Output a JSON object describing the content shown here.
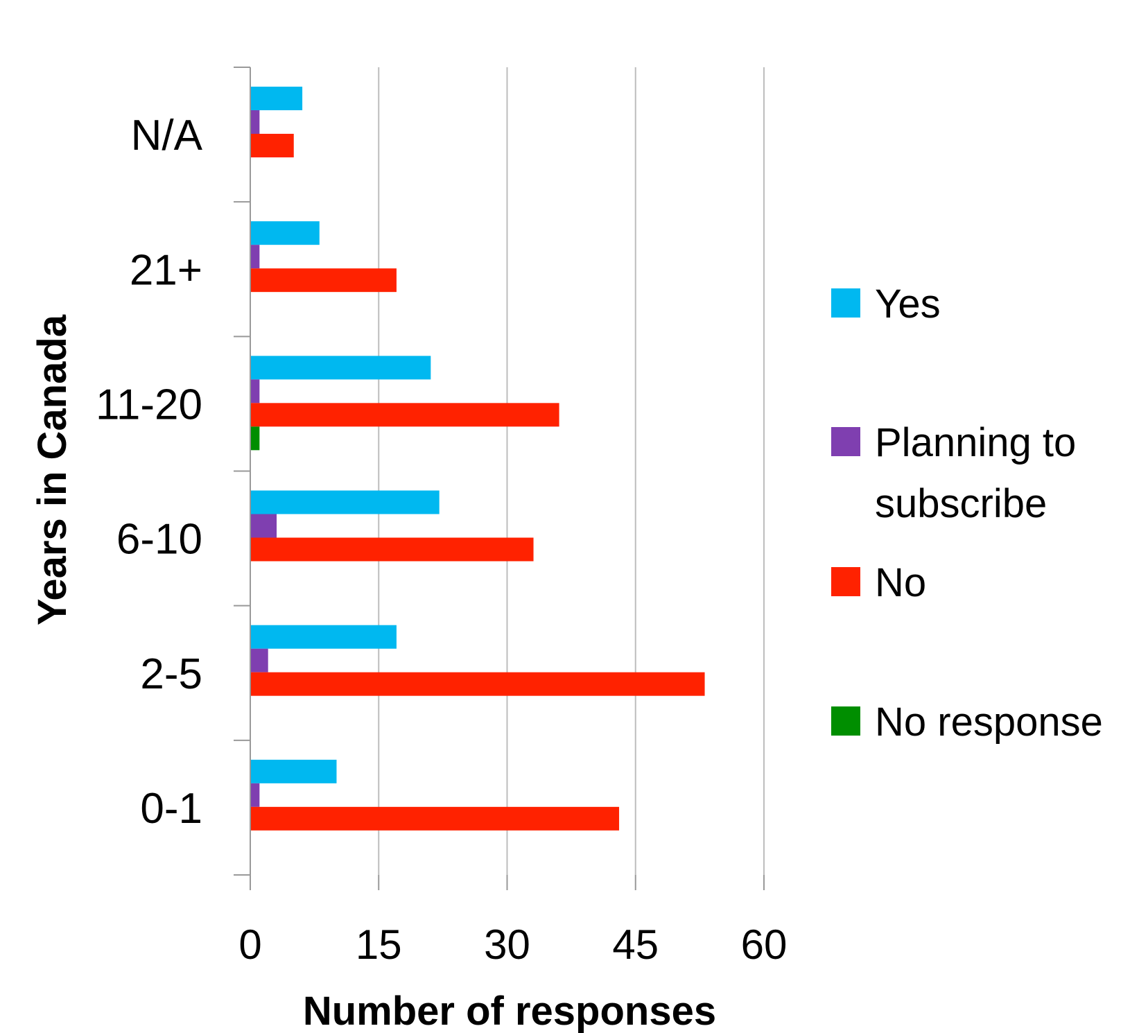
{
  "chart_data": {
    "type": "bar",
    "orientation": "horizontal",
    "title": "",
    "xlabel": "Number of responses",
    "ylabel": "Years in Canada",
    "xlim": [
      0,
      60
    ],
    "xticks": [
      0,
      15,
      30,
      45,
      60
    ],
    "grid": true,
    "legend_position": "right",
    "categories": [
      "N/A",
      "21+",
      "11-20",
      "6-10",
      "2-5",
      "0-1"
    ],
    "series": [
      {
        "name": "Yes",
        "color": "#00B8F0",
        "values": [
          6,
          8,
          21,
          22,
          17,
          10
        ]
      },
      {
        "name": "Planning to subscribe",
        "color": "#7F3FB0",
        "values": [
          1,
          1,
          1,
          3,
          2,
          1
        ]
      },
      {
        "name": "No",
        "color": "#FF2200",
        "values": [
          5,
          17,
          36,
          33,
          53,
          43
        ]
      },
      {
        "name": "No response",
        "color": "#008E00",
        "values": [
          0,
          0,
          1,
          0,
          0,
          0
        ]
      }
    ]
  }
}
